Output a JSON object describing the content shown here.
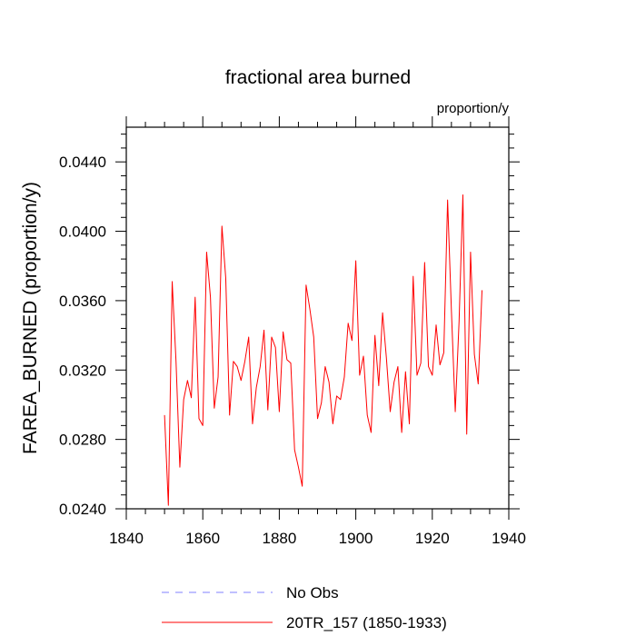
{
  "chart_data": {
    "type": "line",
    "title": "fractional area burned",
    "units_label": "proportion/y",
    "ylabel": "FAREA_BURNED  (proportion/y)",
    "xlabel": "",
    "xlim": [
      1840,
      1940
    ],
    "ylim": [
      0.024,
      0.046
    ],
    "x_ticks": [
      1840,
      1860,
      1880,
      1900,
      1920,
      1940
    ],
    "x_tick_labels": [
      "1840",
      "1860",
      "1880",
      "1900",
      "1920",
      "1940"
    ],
    "y_ticks": [
      0.024,
      0.028,
      0.032,
      0.036,
      0.04,
      0.044
    ],
    "y_tick_labels": [
      "0.0240",
      "0.0280",
      "0.0320",
      "0.0360",
      "0.0400",
      "0.0440"
    ],
    "grid": false,
    "legend_position": "bottom",
    "legend": [
      {
        "name": "No Obs",
        "color": "#8080ff",
        "style": "dashed"
      },
      {
        "name": "20TR_157 (1850-1933)",
        "color": "#ff0000",
        "style": "solid"
      }
    ],
    "series": [
      {
        "name": "20TR_157 (1850-1933)",
        "color": "#ff0000",
        "x": [
          1850,
          1851,
          1852,
          1853,
          1854,
          1855,
          1856,
          1857,
          1858,
          1859,
          1860,
          1861,
          1862,
          1863,
          1864,
          1865,
          1866,
          1867,
          1868,
          1869,
          1870,
          1871,
          1872,
          1873,
          1874,
          1875,
          1876,
          1877,
          1878,
          1879,
          1880,
          1881,
          1882,
          1883,
          1884,
          1885,
          1886,
          1887,
          1888,
          1889,
          1890,
          1891,
          1892,
          1893,
          1894,
          1895,
          1896,
          1897,
          1898,
          1899,
          1900,
          1901,
          1902,
          1903,
          1904,
          1905,
          1906,
          1907,
          1908,
          1909,
          1910,
          1911,
          1912,
          1913,
          1914,
          1915,
          1916,
          1917,
          1918,
          1919,
          1920,
          1921,
          1922,
          1923,
          1924,
          1925,
          1926,
          1927,
          1928,
          1929,
          1930,
          1931,
          1932,
          1933
        ],
        "values": [
          0.0294,
          0.0242,
          0.0371,
          0.0325,
          0.0264,
          0.0303,
          0.0314,
          0.0304,
          0.0362,
          0.0292,
          0.0288,
          0.0388,
          0.0362,
          0.0298,
          0.0316,
          0.0403,
          0.0373,
          0.0294,
          0.0325,
          0.0322,
          0.0314,
          0.0325,
          0.0339,
          0.0289,
          0.031,
          0.0322,
          0.0343,
          0.0297,
          0.0339,
          0.0333,
          0.0296,
          0.0342,
          0.0326,
          0.0324,
          0.0274,
          0.0264,
          0.0253,
          0.0369,
          0.0355,
          0.0339,
          0.0292,
          0.0301,
          0.0322,
          0.0313,
          0.0289,
          0.0305,
          0.0303,
          0.0316,
          0.0347,
          0.0337,
          0.0383,
          0.0317,
          0.0328,
          0.0294,
          0.0284,
          0.034,
          0.0311,
          0.0353,
          0.0327,
          0.0296,
          0.0313,
          0.0322,
          0.0284,
          0.0319,
          0.0289,
          0.0374,
          0.0317,
          0.0324,
          0.0382,
          0.0322,
          0.0317,
          0.0346,
          0.0323,
          0.033,
          0.0418,
          0.0354,
          0.0296,
          0.0348,
          0.0421,
          0.0283,
          0.0388,
          0.0329,
          0.0312,
          0.0366
        ]
      }
    ]
  }
}
